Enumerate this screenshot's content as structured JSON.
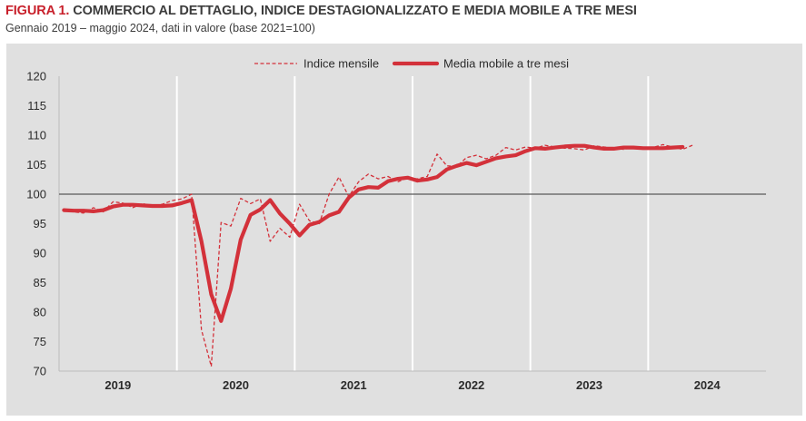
{
  "header": {
    "figure_label": "FIGURA 1.",
    "title": "COMMERCIO AL DETTAGLIO, INDICE DESTAGIONALIZZATO E MEDIA MOBILE A TRE MESI",
    "subtitle": "Gennaio 2019 – maggio 2024, dati in valore (base 2021=100)"
  },
  "colors": {
    "series": "#d3313a",
    "panel_background": "#e0e0e0",
    "reference_line": "#595959",
    "year_separator": "#ffffff"
  },
  "chart_data": {
    "type": "line",
    "title": "COMMERCIO AL DETTAGLIO, INDICE DESTAGIONALIZZATO E MEDIA MOBILE A TRE MESI",
    "xlabel": "",
    "ylabel": "",
    "ylim": [
      70,
      120
    ],
    "yticks": [
      70,
      75,
      80,
      85,
      90,
      95,
      100,
      105,
      110,
      115,
      120
    ],
    "reference_line": 100,
    "grid": false,
    "legend_position": "top-center",
    "x_range_months": [
      0,
      72
    ],
    "year_labels": [
      {
        "label": "2019",
        "month_center": 6
      },
      {
        "label": "2020",
        "month_center": 18
      },
      {
        "label": "2021",
        "month_center": 30
      },
      {
        "label": "2022",
        "month_center": 42
      },
      {
        "label": "2023",
        "month_center": 54
      },
      {
        "label": "2024",
        "month_center": 66
      }
    ],
    "year_separators_months": [
      12,
      24,
      36,
      48,
      60
    ],
    "series": [
      {
        "name": "Indice mensile",
        "style": "dashed",
        "x_months": [
          0.5,
          1.5,
          2.5,
          3.5,
          4.5,
          5.5,
          6.5,
          7.5,
          8.5,
          9.5,
          10.5,
          11.5,
          12.5,
          13.5,
          14.5,
          15.5,
          16.5,
          17.5,
          18.5,
          19.5,
          20.5,
          21.5,
          22.5,
          23.5,
          24.5,
          25.5,
          26.5,
          27.5,
          28.5,
          29.5,
          30.5,
          31.5,
          32.5,
          33.5,
          34.5,
          35.5,
          36.5,
          37.5,
          38.5,
          39.5,
          40.5,
          41.5,
          42.5,
          43.5,
          44.5,
          45.5,
          46.5,
          47.5,
          48.5,
          49.5,
          50.5,
          51.5,
          52.5,
          53.5,
          54.5,
          55.5,
          56.5,
          57.5,
          58.5,
          59.5,
          60.5,
          61.5,
          62.5,
          63.5,
          64.5
        ],
        "values": [
          97.5,
          97.0,
          96.8,
          97.7,
          97.0,
          98.7,
          98.5,
          97.7,
          98.4,
          98.0,
          98.3,
          98.9,
          99.2,
          100.0,
          77.0,
          70.8,
          95.2,
          94.6,
          99.3,
          98.4,
          99.2,
          92.0,
          94.2,
          92.7,
          98.3,
          95.5,
          95.0,
          100.0,
          102.9,
          99.6,
          102.1,
          103.4,
          102.6,
          103.0,
          102.1,
          102.8,
          102.6,
          103.0,
          106.8,
          104.8,
          104.7,
          106.2,
          106.6,
          106.0,
          106.6,
          107.9,
          107.5,
          108.0,
          107.8,
          108.3,
          108.0,
          107.8,
          107.7,
          107.5,
          108.2,
          108.0,
          107.8,
          107.6,
          108.0,
          107.8,
          107.9,
          108.4,
          108.0,
          107.6,
          108.3
        ]
      },
      {
        "name": "Media mobile a tre mesi",
        "style": "solid-thick",
        "x_months": [
          0.5,
          1.5,
          2.5,
          3.5,
          4.5,
          5.5,
          6.5,
          7.5,
          8.5,
          9.5,
          10.5,
          11.5,
          12.5,
          13.5,
          14.5,
          15.5,
          16.5,
          17.5,
          18.5,
          19.5,
          20.5,
          21.5,
          22.5,
          23.5,
          24.5,
          25.5,
          26.5,
          27.5,
          28.5,
          29.5,
          30.5,
          31.5,
          32.5,
          33.5,
          34.5,
          35.5,
          36.5,
          37.5,
          38.5,
          39.5,
          40.5,
          41.5,
          42.5,
          43.5,
          44.5,
          45.5,
          46.5,
          47.5,
          48.5,
          49.5,
          50.5,
          51.5,
          52.5,
          53.5,
          54.5,
          55.5,
          56.5,
          57.5,
          58.5,
          59.5,
          60.5,
          61.5,
          62.5,
          63.5
        ],
        "values": [
          97.3,
          97.2,
          97.2,
          97.1,
          97.3,
          97.9,
          98.2,
          98.2,
          98.1,
          98.0,
          98.0,
          98.1,
          98.5,
          99.0,
          92.0,
          83.0,
          78.5,
          84.0,
          92.3,
          96.5,
          97.4,
          99.0,
          96.7,
          95.0,
          93.0,
          94.8,
          95.3,
          96.4,
          97.0,
          99.4,
          100.8,
          101.2,
          101.1,
          102.2,
          102.6,
          102.8,
          102.3,
          102.5,
          102.9,
          104.2,
          104.8,
          105.3,
          104.9,
          105.5,
          106.1,
          106.4,
          106.6,
          107.3,
          107.8,
          107.7,
          107.9,
          108.1,
          108.2,
          108.2,
          107.9,
          107.7,
          107.7,
          107.9,
          107.9,
          107.8,
          107.8,
          107.8,
          107.9,
          108.0
        ]
      }
    ]
  }
}
